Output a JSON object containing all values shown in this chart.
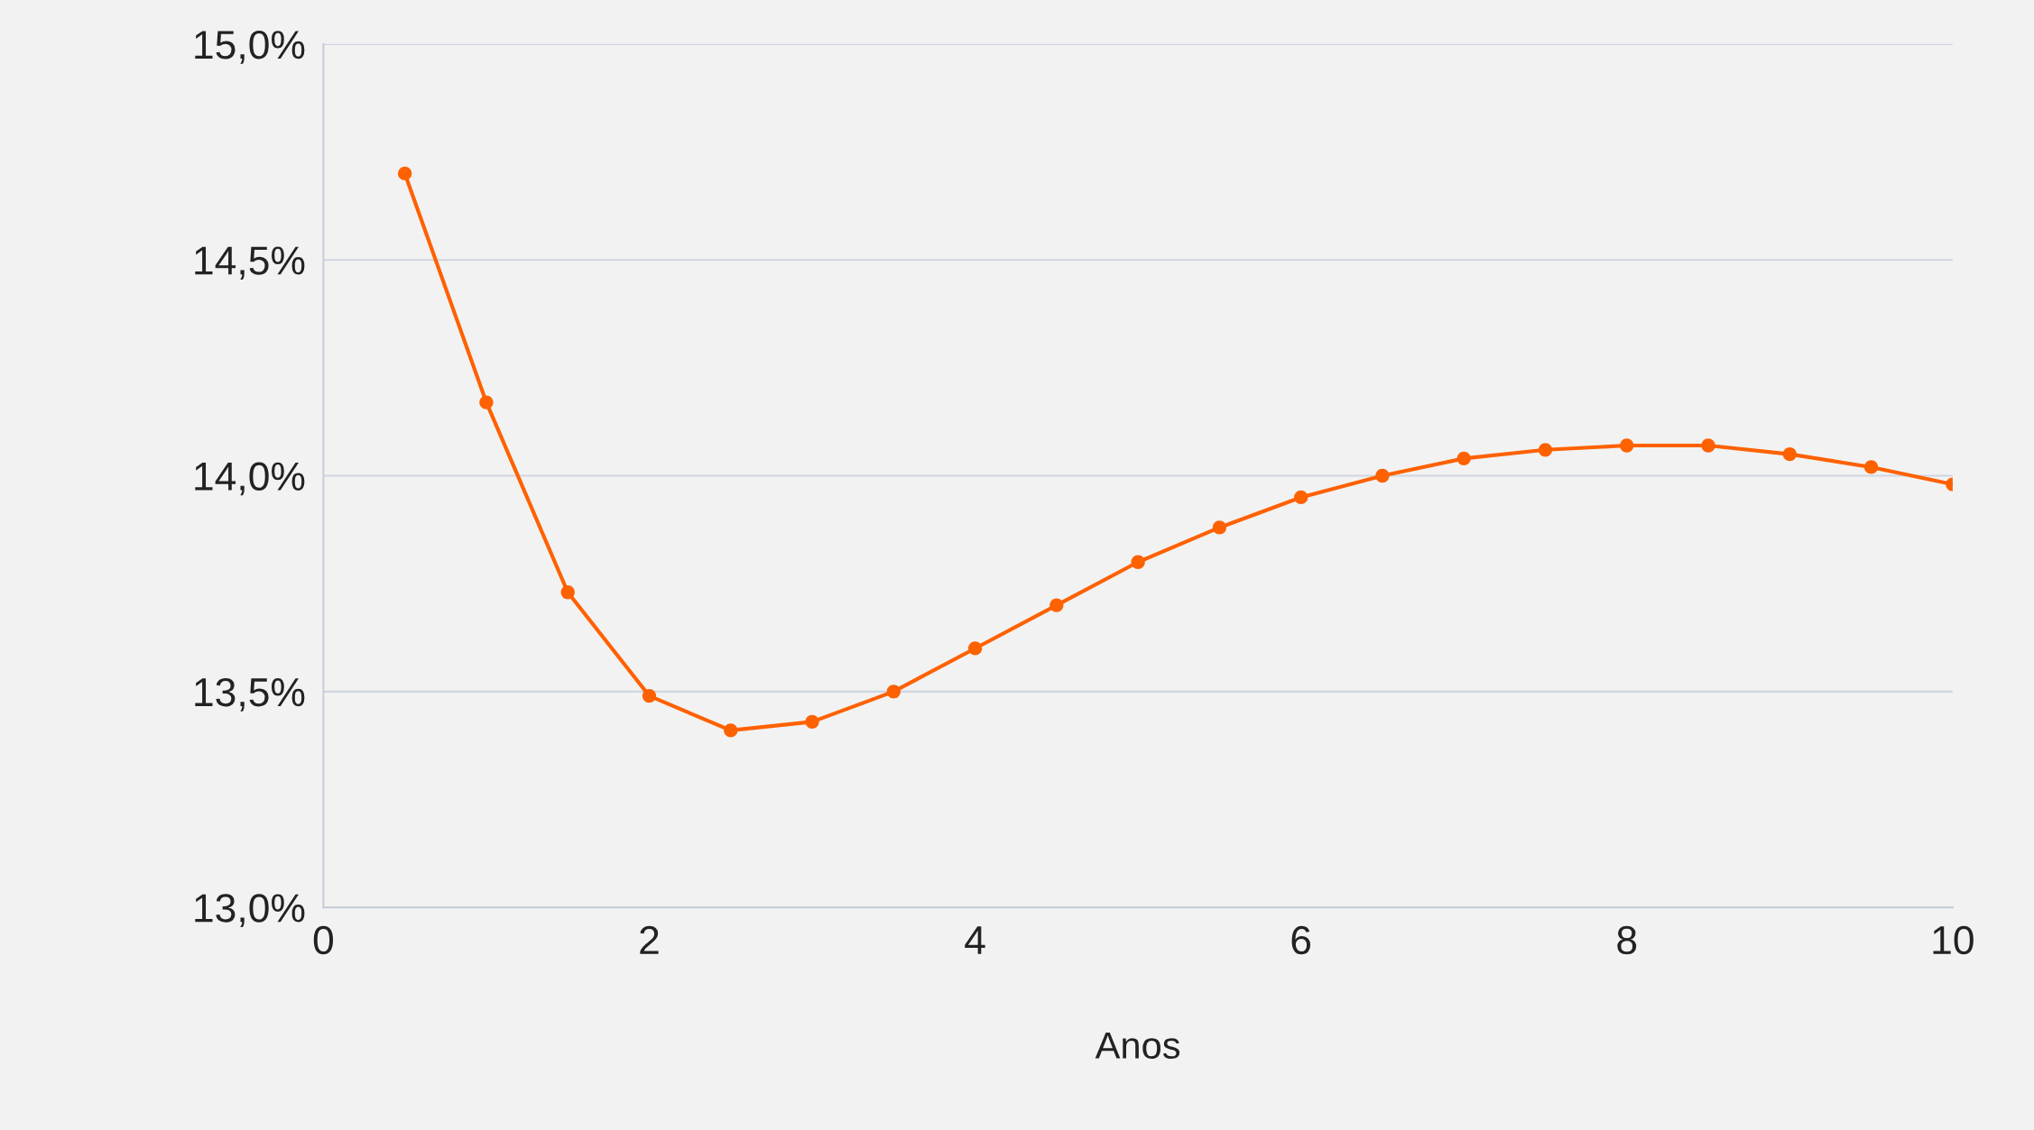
{
  "chart_data": {
    "type": "line",
    "xlabel": "Anos",
    "x": [
      0.5,
      1,
      1.5,
      2,
      2.5,
      3,
      3.5,
      4,
      4.5,
      5,
      5.5,
      6,
      6.5,
      7,
      7.5,
      8,
      8.5,
      9,
      9.5,
      10
    ],
    "series": [
      {
        "color": "#fe6100",
        "values": [
          14.7,
          14.17,
          13.73,
          13.49,
          13.41,
          13.43,
          13.5,
          13.6,
          13.7,
          13.8,
          13.88,
          13.95,
          14.0,
          14.04,
          14.06,
          14.07,
          14.07,
          14.05,
          14.02,
          13.98
        ]
      }
    ],
    "xlim": [
      0,
      10
    ],
    "xticks": [
      0,
      2,
      4,
      6,
      8,
      10
    ],
    "ylim": [
      13.0,
      15.0
    ],
    "yticks": [
      {
        "value": 13.0,
        "label": "13,0%"
      },
      {
        "value": 13.5,
        "label": "13,5%"
      },
      {
        "value": 14.0,
        "label": "14,0%"
      },
      {
        "value": 14.5,
        "label": "14,5%"
      },
      {
        "value": 15.0,
        "label": "15,0%"
      }
    ],
    "grid": "y",
    "marker": "circle",
    "line_style": "solid",
    "legend": false
  }
}
